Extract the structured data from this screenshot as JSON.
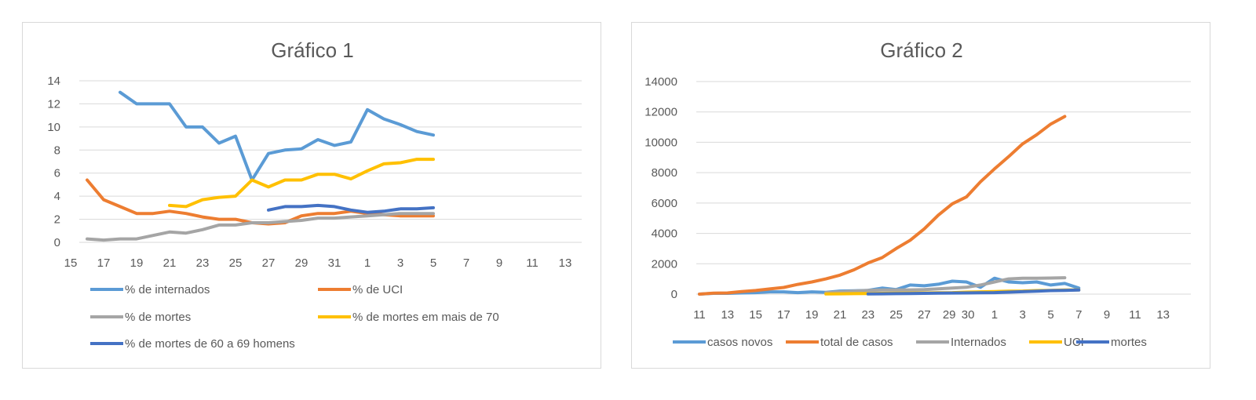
{
  "charts": [
    {
      "type": "line",
      "title": "Gráfico 1",
      "y_ticks": [
        "0",
        "2",
        "4",
        "6",
        "8",
        "10",
        "12",
        "14"
      ],
      "x_ticks": [
        "15",
        "17",
        "19",
        "21",
        "23",
        "25",
        "27",
        "29",
        "31",
        "1",
        "3",
        "5",
        "7",
        "9",
        "11",
        "13"
      ],
      "ylim": [
        0,
        14
      ],
      "x_count": 31,
      "colors": {
        "grid": "#d9d9d9",
        "text": "#595959"
      },
      "series": [
        {
          "name": "% de internados",
          "color": "#5b9bd5",
          "values": [
            null,
            null,
            null,
            13,
            12,
            12,
            12,
            10,
            10,
            8.6,
            9.2,
            5.4,
            7.7,
            8,
            8.1,
            8.9,
            8.4,
            8.7,
            11.5,
            10.7,
            10.2,
            9.6,
            9.3
          ]
        },
        {
          "name": "% de UCI",
          "color": "#ed7d31",
          "values": [
            null,
            5.4,
            3.7,
            3.1,
            2.5,
            2.5,
            2.7,
            2.5,
            2.2,
            2,
            2,
            1.7,
            1.6,
            1.7,
            2.3,
            2.5,
            2.5,
            2.7,
            2.5,
            2.4,
            2.3,
            2.3,
            2.3
          ]
        },
        {
          "name": "% de mortes",
          "color": "#a5a5a5",
          "values": [
            null,
            0.3,
            0.2,
            0.3,
            0.3,
            0.6,
            0.9,
            0.8,
            1.1,
            1.5,
            1.5,
            1.7,
            1.7,
            1.8,
            1.9,
            2.1,
            2.1,
            2.2,
            2.3,
            2.4,
            2.5,
            2.5,
            2.5
          ]
        },
        {
          "name": "% de mortes em mais de 70",
          "color": "#ffc000",
          "values": [
            null,
            null,
            null,
            null,
            null,
            null,
            3.2,
            3.1,
            3.7,
            3.9,
            4,
            5.4,
            4.8,
            5.4,
            5.4,
            5.9,
            5.9,
            5.5,
            6.2,
            6.8,
            6.9,
            7.2,
            7.2
          ]
        },
        {
          "name": "% de mortes de 60 a 69 homens",
          "color": "#4472c4",
          "values": [
            null,
            null,
            null,
            null,
            null,
            null,
            null,
            null,
            null,
            null,
            null,
            null,
            2.8,
            3.1,
            3.1,
            3.2,
            3.1,
            2.8,
            2.6,
            2.7,
            2.9,
            2.9,
            3
          ]
        }
      ]
    },
    {
      "type": "line",
      "title": "Gráfico 2",
      "y_ticks": [
        "0",
        "2000",
        "4000",
        "6000",
        "8000",
        "10000",
        "12000",
        "14000"
      ],
      "x_ticks": [
        "11",
        "13",
        "15",
        "17",
        "19",
        "21",
        "23",
        "25",
        "27",
        "29",
        "30",
        "1",
        "3",
        "5",
        "7",
        "9",
        "11",
        "13"
      ],
      "ylim": [
        0,
        14000
      ],
      "x_count": 30,
      "colors": {
        "grid": "#d9d9d9",
        "text": "#595959"
      },
      "series": [
        {
          "name": "casos novos",
          "color": "#5b9bd5",
          "values": [
            0,
            50,
            50,
            80,
            100,
            150,
            150,
            100,
            150,
            120,
            200,
            220,
            250,
            400,
            300,
            600,
            550,
            650,
            850,
            800,
            450,
            1050,
            800,
            750,
            800,
            600,
            700,
            400
          ]
        },
        {
          "name": "total de casos",
          "color": "#ed7d31",
          "values": [
            0,
            60,
            80,
            170,
            240,
            340,
            440,
            640,
            800,
            1000,
            1250,
            1600,
            2050,
            2400,
            3000,
            3550,
            4300,
            5200,
            5950,
            6400,
            7400,
            8250,
            9050,
            9900,
            10500,
            11200,
            11700,
            null
          ]
        },
        {
          "name": "Internados",
          "color": "#a5a5a5",
          "values": [
            null,
            null,
            null,
            null,
            null,
            null,
            null,
            null,
            null,
            100,
            150,
            200,
            250,
            270,
            270,
            280,
            300,
            350,
            400,
            450,
            600,
            800,
            1000,
            1050,
            1050,
            1060,
            1080,
            null
          ]
        },
        {
          "name": "UCI",
          "color": "#ffc000",
          "values": [
            null,
            null,
            null,
            null,
            null,
            null,
            null,
            null,
            null,
            10,
            20,
            30,
            40,
            50,
            60,
            70,
            80,
            90,
            100,
            130,
            150,
            170,
            190,
            200,
            230,
            250,
            270,
            280
          ]
        },
        {
          "name": "mortes",
          "color": "#4472c4",
          "values": [
            null,
            null,
            null,
            null,
            null,
            null,
            null,
            null,
            null,
            null,
            null,
            null,
            10,
            20,
            30,
            40,
            50,
            60,
            70,
            80,
            90,
            100,
            130,
            160,
            190,
            230,
            250,
            270
          ]
        }
      ]
    }
  ]
}
